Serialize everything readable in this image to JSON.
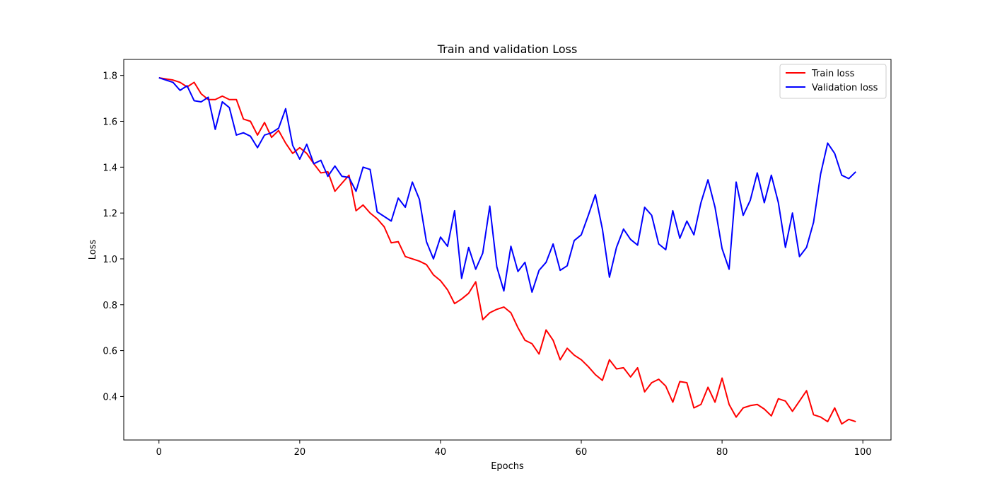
{
  "chart_data": {
    "type": "line",
    "title": "Train and validation Loss",
    "xlabel": "Epochs",
    "ylabel": "Loss",
    "xlim": [
      -5,
      104
    ],
    "ylim": [
      0.21,
      1.87
    ],
    "xticks": [
      0,
      20,
      40,
      60,
      80,
      100
    ],
    "yticks": [
      0.4,
      0.6,
      0.8,
      1.0,
      1.2,
      1.4,
      1.6,
      1.8
    ],
    "ytick_labels": [
      "0.4",
      "0.6",
      "0.8",
      "1.0",
      "1.2",
      "1.4",
      "1.6",
      "1.8"
    ],
    "grid": false,
    "legend": "top-right",
    "series": [
      {
        "name": "Train loss",
        "color": "#ff0000",
        "values": [
          1.79,
          1.785,
          1.78,
          1.77,
          1.75,
          1.77,
          1.72,
          1.695,
          1.695,
          1.71,
          1.695,
          1.695,
          1.61,
          1.6,
          1.54,
          1.595,
          1.53,
          1.56,
          1.505,
          1.46,
          1.485,
          1.46,
          1.415,
          1.375,
          1.38,
          1.295,
          1.33,
          1.365,
          1.21,
          1.235,
          1.2,
          1.175,
          1.14,
          1.07,
          1.075,
          1.01,
          1.0,
          0.99,
          0.975,
          0.93,
          0.905,
          0.865,
          0.805,
          0.825,
          0.85,
          0.9,
          0.735,
          0.765,
          0.78,
          0.79,
          0.765,
          0.7,
          0.645,
          0.63,
          0.585,
          0.69,
          0.645,
          0.56,
          0.61,
          0.58,
          0.56,
          0.53,
          0.495,
          0.47,
          0.56,
          0.52,
          0.525,
          0.485,
          0.525,
          0.42,
          0.46,
          0.475,
          0.445,
          0.375,
          0.465,
          0.46,
          0.35,
          0.365,
          0.44,
          0.375,
          0.48,
          0.365,
          0.31,
          0.35,
          0.36,
          0.365,
          0.345,
          0.315,
          0.39,
          0.38,
          0.335,
          0.38,
          0.425,
          0.32,
          0.31,
          0.29,
          0.35,
          0.28,
          0.3,
          0.29
        ]
      },
      {
        "name": "Validation loss",
        "color": "#0000ff",
        "values": [
          1.79,
          1.78,
          1.77,
          1.735,
          1.755,
          1.69,
          1.685,
          1.705,
          1.565,
          1.685,
          1.66,
          1.54,
          1.55,
          1.535,
          1.485,
          1.54,
          1.55,
          1.57,
          1.655,
          1.495,
          1.435,
          1.5,
          1.415,
          1.43,
          1.36,
          1.405,
          1.36,
          1.355,
          1.295,
          1.4,
          1.39,
          1.205,
          1.185,
          1.165,
          1.265,
          1.225,
          1.335,
          1.26,
          1.075,
          1.0,
          1.095,
          1.055,
          1.21,
          0.915,
          1.05,
          0.955,
          1.025,
          1.23,
          0.965,
          0.86,
          1.055,
          0.945,
          0.985,
          0.855,
          0.95,
          0.985,
          1.065,
          0.95,
          0.97,
          1.08,
          1.105,
          1.19,
          1.28,
          1.13,
          0.92,
          1.05,
          1.13,
          1.085,
          1.06,
          1.225,
          1.19,
          1.065,
          1.04,
          1.21,
          1.09,
          1.165,
          1.105,
          1.245,
          1.345,
          1.225,
          1.045,
          0.955,
          1.335,
          1.19,
          1.255,
          1.375,
          1.245,
          1.365,
          1.245,
          1.05,
          1.2,
          1.01,
          1.05,
          1.16,
          1.37,
          1.505,
          1.46,
          1.365,
          1.35,
          1.38
        ]
      }
    ]
  }
}
